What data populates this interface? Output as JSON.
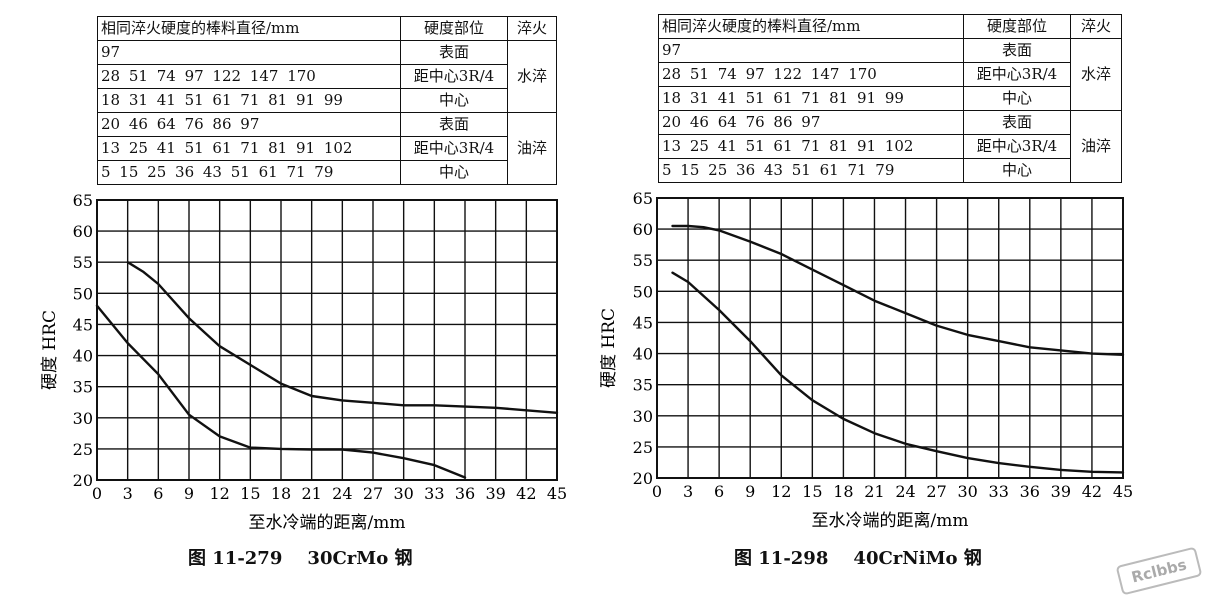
{
  "chart_data": [
    {
      "type": "line",
      "header": {
        "col1_title": "相同淬火硬度的棒料直径/mm",
        "col2_title": "硬度部位",
        "col3_title": "淬火",
        "rows": [
          {
            "values": "97",
            "position": "表面"
          },
          {
            "values": "28  51  74  97  122  147  170",
            "position": "距中心3R/4"
          },
          {
            "values": "18  31  41  51  61  71  81  91  99",
            "position": "中心"
          },
          {
            "values": "20  46  64  76  86  97",
            "position": "表面"
          },
          {
            "values": "13  25  41  51  61  71  81  91  102",
            "position": "距中心3R/4"
          },
          {
            "values": "5  15  25  36  43  51  61  71  79",
            "position": "中心"
          }
        ],
        "quench": [
          "水淬",
          "油淬"
        ]
      },
      "xlabel": "至水冷端的距离/mm",
      "ylabel": "硬度  HRC",
      "xticks": [
        0,
        3,
        6,
        9,
        12,
        15,
        18,
        21,
        24,
        27,
        30,
        33,
        36,
        39,
        42,
        45
      ],
      "yticks": [
        20,
        25,
        30,
        35,
        40,
        45,
        50,
        55,
        60,
        65
      ],
      "xlim": [
        0,
        45
      ],
      "ylim": [
        20,
        65
      ],
      "grid": true,
      "series": [
        {
          "x": [
            3,
            4.5,
            6,
            9,
            12,
            15,
            18,
            21,
            24,
            27,
            30,
            33,
            36,
            39,
            42,
            45
          ],
          "values": [
            55,
            53.5,
            51.5,
            46,
            41.5,
            38.5,
            35.5,
            33.5,
            32.8,
            32.4,
            32,
            32,
            31.8,
            31.6,
            31.2,
            30.8
          ]
        },
        {
          "x": [
            0,
            1.5,
            3,
            6,
            9,
            12,
            15,
            18,
            21,
            24,
            27,
            30,
            33,
            36
          ],
          "values": [
            48,
            45,
            42,
            37,
            30.5,
            27,
            25.2,
            25,
            24.9,
            24.9,
            24.4,
            23.5,
            22.4,
            20.4
          ]
        }
      ],
      "caption": "图 11-279    30CrMo 钢"
    },
    {
      "type": "line",
      "header": {
        "col1_title": "相同淬火硬度的棒料直径/mm",
        "col2_title": "硬度部位",
        "col3_title": "淬火",
        "rows": [
          {
            "values": "97",
            "position": "表面"
          },
          {
            "values": "28  51  74  97  122  147  170",
            "position": "距中心3R/4"
          },
          {
            "values": "18  31  41  51  61  71  81  91  99",
            "position": "中心"
          },
          {
            "values": "20  46  64  76  86  97",
            "position": "表面"
          },
          {
            "values": "13  25  41  51  61  71  81  91  102",
            "position": "距中心3R/4"
          },
          {
            "values": "5  15  25  36  43  51  61  71  79",
            "position": "中心"
          }
        ],
        "quench": [
          "水淬",
          "油淬"
        ]
      },
      "xlabel": "至水冷端的距离/mm",
      "ylabel": "硬度  HRC",
      "xticks": [
        0,
        3,
        6,
        9,
        12,
        15,
        18,
        21,
        24,
        27,
        30,
        33,
        36,
        39,
        42,
        45
      ],
      "yticks": [
        20,
        25,
        30,
        35,
        40,
        45,
        50,
        55,
        60,
        65
      ],
      "xlim": [
        0,
        45
      ],
      "ylim": [
        20,
        65
      ],
      "grid": true,
      "series": [
        {
          "x": [
            1.5,
            3,
            4.5,
            6,
            9,
            12,
            15,
            18,
            21,
            24,
            27,
            30,
            33,
            36,
            39,
            42,
            45
          ],
          "values": [
            60.5,
            60.5,
            60.3,
            59.8,
            58,
            56,
            53.5,
            51,
            48.5,
            46.5,
            44.5,
            43,
            42,
            41,
            40.5,
            40,
            39.8
          ]
        },
        {
          "x": [
            1.5,
            3,
            6,
            9,
            12,
            15,
            18,
            21,
            24,
            27,
            30,
            33,
            36,
            39,
            42,
            45
          ],
          "values": [
            53,
            51.5,
            47,
            42,
            36.5,
            32.5,
            29.5,
            27.2,
            25.5,
            24.3,
            23.2,
            22.4,
            21.8,
            21.3,
            21,
            20.9
          ]
        }
      ],
      "caption": "图 11-298    40CrNiMo 钢"
    }
  ],
  "watermark": "Rclbbs"
}
